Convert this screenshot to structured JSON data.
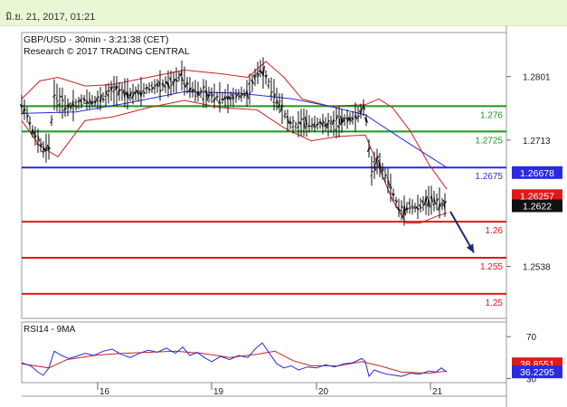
{
  "header": {
    "datetime": "มิ.ย. 21, 2017, 01:21"
  },
  "chart_data": {
    "type": "line",
    "title": "GBP/USD - 30min - 3:21:38 (CET)",
    "subtitle": "Research © 2017 TRADING CENTRAL",
    "x_tick_labels": [
      "16",
      "19",
      "20",
      "21"
    ],
    "y_tick_labels": [
      "1.2801",
      "1.2713",
      "1.2538"
    ],
    "y_ticks": [
      1.2801,
      1.2713,
      1.2538
    ],
    "ylim": [
      1.2466,
      1.2862
    ],
    "price_series": [
      {
        "t": 0,
        "v": 1.2762
      },
      {
        "t": 6,
        "v": 1.2748
      },
      {
        "t": 12,
        "v": 1.2725
      },
      {
        "t": 18,
        "v": 1.2712
      },
      {
        "t": 24,
        "v": 1.27
      },
      {
        "t": 30,
        "v": 1.2704
      },
      {
        "t": 36,
        "v": 1.2776
      },
      {
        "t": 42,
        "v": 1.2768
      },
      {
        "t": 50,
        "v": 1.2758
      },
      {
        "t": 60,
        "v": 1.2762
      },
      {
        "t": 70,
        "v": 1.277
      },
      {
        "t": 80,
        "v": 1.2766
      },
      {
        "t": 90,
        "v": 1.2772
      },
      {
        "t": 100,
        "v": 1.2782
      },
      {
        "t": 110,
        "v": 1.278
      },
      {
        "t": 120,
        "v": 1.2776
      },
      {
        "t": 130,
        "v": 1.2779
      },
      {
        "t": 140,
        "v": 1.2785
      },
      {
        "t": 150,
        "v": 1.2788
      },
      {
        "t": 160,
        "v": 1.279
      },
      {
        "t": 170,
        "v": 1.2794
      },
      {
        "t": 176,
        "v": 1.2805
      },
      {
        "t": 182,
        "v": 1.279
      },
      {
        "t": 190,
        "v": 1.2782
      },
      {
        "t": 200,
        "v": 1.2778
      },
      {
        "t": 210,
        "v": 1.2775
      },
      {
        "t": 220,
        "v": 1.2772
      },
      {
        "t": 230,
        "v": 1.277
      },
      {
        "t": 240,
        "v": 1.2776
      },
      {
        "t": 250,
        "v": 1.2778
      },
      {
        "t": 258,
        "v": 1.28
      },
      {
        "t": 264,
        "v": 1.2812
      },
      {
        "t": 270,
        "v": 1.28
      },
      {
        "t": 278,
        "v": 1.2778
      },
      {
        "t": 286,
        "v": 1.2762
      },
      {
        "t": 294,
        "v": 1.274
      },
      {
        "t": 302,
        "v": 1.2732
      },
      {
        "t": 310,
        "v": 1.2738
      },
      {
        "t": 320,
        "v": 1.2735
      },
      {
        "t": 330,
        "v": 1.2736
      },
      {
        "t": 340,
        "v": 1.2734
      },
      {
        "t": 350,
        "v": 1.2738
      },
      {
        "t": 360,
        "v": 1.2742
      },
      {
        "t": 370,
        "v": 1.2745
      },
      {
        "t": 378,
        "v": 1.2758
      },
      {
        "t": 382,
        "v": 1.2735
      },
      {
        "t": 386,
        "v": 1.2668
      },
      {
        "t": 390,
        "v": 1.2678
      },
      {
        "t": 394,
        "v": 1.2685
      },
      {
        "t": 398,
        "v": 1.2672
      },
      {
        "t": 404,
        "v": 1.266
      },
      {
        "t": 410,
        "v": 1.264
      },
      {
        "t": 416,
        "v": 1.262
      },
      {
        "t": 422,
        "v": 1.2614
      },
      {
        "t": 428,
        "v": 1.2622
      },
      {
        "t": 436,
        "v": 1.2619
      },
      {
        "t": 444,
        "v": 1.2625
      },
      {
        "t": 452,
        "v": 1.263
      },
      {
        "t": 460,
        "v": 1.2627
      },
      {
        "t": 466,
        "v": 1.2624
      },
      {
        "t": 470,
        "v": 1.2622
      }
    ],
    "moving_average": [
      {
        "t": 0,
        "v": 1.275
      },
      {
        "t": 60,
        "v": 1.2752
      },
      {
        "t": 120,
        "v": 1.2765
      },
      {
        "t": 180,
        "v": 1.278
      },
      {
        "t": 240,
        "v": 1.2778
      },
      {
        "t": 300,
        "v": 1.277
      },
      {
        "t": 340,
        "v": 1.276
      },
      {
        "t": 380,
        "v": 1.2748
      },
      {
        "t": 420,
        "v": 1.2715
      },
      {
        "t": 470,
        "v": 1.2675
      }
    ],
    "upper_band": [
      {
        "t": 0,
        "v": 1.277
      },
      {
        "t": 20,
        "v": 1.2795
      },
      {
        "t": 40,
        "v": 1.28
      },
      {
        "t": 70,
        "v": 1.2788
      },
      {
        "t": 100,
        "v": 1.279
      },
      {
        "t": 140,
        "v": 1.28
      },
      {
        "t": 180,
        "v": 1.281
      },
      {
        "t": 220,
        "v": 1.2805
      },
      {
        "t": 250,
        "v": 1.28
      },
      {
        "t": 270,
        "v": 1.2822
      },
      {
        "t": 290,
        "v": 1.28
      },
      {
        "t": 310,
        "v": 1.277
      },
      {
        "t": 340,
        "v": 1.276
      },
      {
        "t": 380,
        "v": 1.2762
      },
      {
        "t": 395,
        "v": 1.277
      },
      {
        "t": 410,
        "v": 1.2758
      },
      {
        "t": 430,
        "v": 1.2725
      },
      {
        "t": 450,
        "v": 1.268
      },
      {
        "t": 470,
        "v": 1.2645
      }
    ],
    "lower_band": [
      {
        "t": 0,
        "v": 1.274
      },
      {
        "t": 20,
        "v": 1.2705
      },
      {
        "t": 40,
        "v": 1.269
      },
      {
        "t": 70,
        "v": 1.274
      },
      {
        "t": 100,
        "v": 1.2745
      },
      {
        "t": 140,
        "v": 1.2758
      },
      {
        "t": 180,
        "v": 1.2768
      },
      {
        "t": 220,
        "v": 1.2758
      },
      {
        "t": 260,
        "v": 1.2755
      },
      {
        "t": 290,
        "v": 1.273
      },
      {
        "t": 320,
        "v": 1.2712
      },
      {
        "t": 350,
        "v": 1.2718
      },
      {
        "t": 380,
        "v": 1.272
      },
      {
        "t": 395,
        "v": 1.2675
      },
      {
        "t": 410,
        "v": 1.263
      },
      {
        "t": 425,
        "v": 1.2598
      },
      {
        "t": 440,
        "v": 1.2598
      },
      {
        "t": 460,
        "v": 1.2608
      },
      {
        "t": 470,
        "v": 1.2612
      }
    ],
    "levels": [
      {
        "value": 1.276,
        "label": "1.276",
        "color": "#1a9a1a"
      },
      {
        "value": 1.2725,
        "label": "1.2725",
        "color": "#1a9a1a"
      },
      {
        "value": 1.2675,
        "label": "1.2675",
        "color": "#2a2ae0"
      },
      {
        "value": 1.26,
        "label": "1.26",
        "color": "#e01a1a"
      },
      {
        "value": 1.255,
        "label": "1.255",
        "color": "#e01a1a"
      },
      {
        "value": 1.25,
        "label": "1.25",
        "color": "#e01a1a"
      }
    ],
    "price_tags": [
      {
        "value": 1.2668,
        "label": "1.26678",
        "bg": "#2a2ae0"
      },
      {
        "value": 1.2636,
        "label": "1.26257",
        "bg": "#e01a1a"
      },
      {
        "value": 1.2622,
        "label": "1.2622",
        "bg": "#111111"
      }
    ],
    "arrow": {
      "from": {
        "t": 474,
        "v": 1.2614
      },
      "to": {
        "t": 500,
        "v": 1.2557
      }
    },
    "rsi": {
      "title": "RSI14 - 9MA",
      "y_tick_labels": [
        "70",
        "30"
      ],
      "ylim": [
        26,
        84
      ],
      "rsi_values": [
        {
          "t": 0,
          "v": 45
        },
        {
          "t": 10,
          "v": 42
        },
        {
          "t": 18,
          "v": 36
        },
        {
          "t": 24,
          "v": 33
        },
        {
          "t": 30,
          "v": 40
        },
        {
          "t": 36,
          "v": 56
        },
        {
          "t": 44,
          "v": 52
        },
        {
          "t": 52,
          "v": 49
        },
        {
          "t": 60,
          "v": 51
        },
        {
          "t": 70,
          "v": 54
        },
        {
          "t": 80,
          "v": 52
        },
        {
          "t": 90,
          "v": 56
        },
        {
          "t": 100,
          "v": 58
        },
        {
          "t": 110,
          "v": 53
        },
        {
          "t": 120,
          "v": 50
        },
        {
          "t": 130,
          "v": 54
        },
        {
          "t": 140,
          "v": 57
        },
        {
          "t": 150,
          "v": 55
        },
        {
          "t": 160,
          "v": 59
        },
        {
          "t": 170,
          "v": 54
        },
        {
          "t": 178,
          "v": 60
        },
        {
          "t": 186,
          "v": 52
        },
        {
          "t": 194,
          "v": 55
        },
        {
          "t": 202,
          "v": 50
        },
        {
          "t": 210,
          "v": 46
        },
        {
          "t": 220,
          "v": 51
        },
        {
          "t": 230,
          "v": 48
        },
        {
          "t": 240,
          "v": 52
        },
        {
          "t": 250,
          "v": 50
        },
        {
          "t": 258,
          "v": 58
        },
        {
          "t": 266,
          "v": 64
        },
        {
          "t": 274,
          "v": 54
        },
        {
          "t": 282,
          "v": 44
        },
        {
          "t": 290,
          "v": 40
        },
        {
          "t": 298,
          "v": 42
        },
        {
          "t": 306,
          "v": 38
        },
        {
          "t": 316,
          "v": 41
        },
        {
          "t": 326,
          "v": 40
        },
        {
          "t": 336,
          "v": 43
        },
        {
          "t": 346,
          "v": 41
        },
        {
          "t": 356,
          "v": 44
        },
        {
          "t": 366,
          "v": 45
        },
        {
          "t": 376,
          "v": 49
        },
        {
          "t": 380,
          "v": 46
        },
        {
          "t": 384,
          "v": 32
        },
        {
          "t": 390,
          "v": 38
        },
        {
          "t": 396,
          "v": 36
        },
        {
          "t": 404,
          "v": 34
        },
        {
          "t": 412,
          "v": 33
        },
        {
          "t": 420,
          "v": 32
        },
        {
          "t": 430,
          "v": 35
        },
        {
          "t": 440,
          "v": 34
        },
        {
          "t": 450,
          "v": 37
        },
        {
          "t": 458,
          "v": 36
        },
        {
          "t": 464,
          "v": 40
        },
        {
          "t": 470,
          "v": 36
        }
      ],
      "ma_values": [
        {
          "t": 0,
          "v": 44
        },
        {
          "t": 30,
          "v": 40
        },
        {
          "t": 50,
          "v": 48
        },
        {
          "t": 80,
          "v": 52
        },
        {
          "t": 110,
          "v": 54
        },
        {
          "t": 140,
          "v": 55
        },
        {
          "t": 170,
          "v": 56
        },
        {
          "t": 200,
          "v": 54
        },
        {
          "t": 230,
          "v": 50
        },
        {
          "t": 260,
          "v": 53
        },
        {
          "t": 280,
          "v": 56
        },
        {
          "t": 300,
          "v": 47
        },
        {
          "t": 320,
          "v": 42
        },
        {
          "t": 350,
          "v": 42
        },
        {
          "t": 376,
          "v": 46
        },
        {
          "t": 396,
          "v": 42
        },
        {
          "t": 420,
          "v": 36
        },
        {
          "t": 450,
          "v": 35
        },
        {
          "t": 470,
          "v": 37
        }
      ],
      "tags": [
        {
          "value": 44,
          "label": "38.8551",
          "bg": "#e01a1a"
        },
        {
          "value": 36.2,
          "label": "36.2295",
          "bg": "#2a2ae0"
        }
      ]
    }
  }
}
